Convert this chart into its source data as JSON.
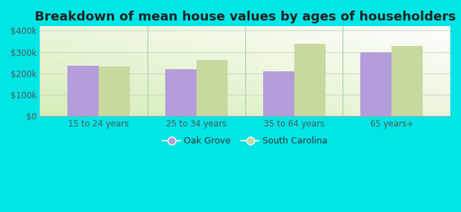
{
  "title": "Breakdown of mean house values by ages of householders",
  "categories": [
    "15 to 24 years",
    "25 to 34 years",
    "35 to 64 years",
    "65 years+"
  ],
  "oak_grove": [
    235000,
    220000,
    210000,
    300000
  ],
  "south_carolina": [
    232000,
    262000,
    340000,
    328000
  ],
  "bar_color_oak": "#b39ddb",
  "bar_color_sc": "#c8d9a0",
  "background_color": "#00e5e5",
  "ylim": [
    0,
    420000
  ],
  "yticks": [
    0,
    100000,
    200000,
    300000,
    400000
  ],
  "ytick_labels": [
    "$0",
    "$100k",
    "$200k",
    "$300k",
    "$400k"
  ],
  "legend_oak": "Oak Grove",
  "legend_sc": "South Carolina",
  "title_fontsize": 13,
  "bar_width": 0.32,
  "divider_color": "#aaccaa",
  "grid_color": "#ddeecc"
}
